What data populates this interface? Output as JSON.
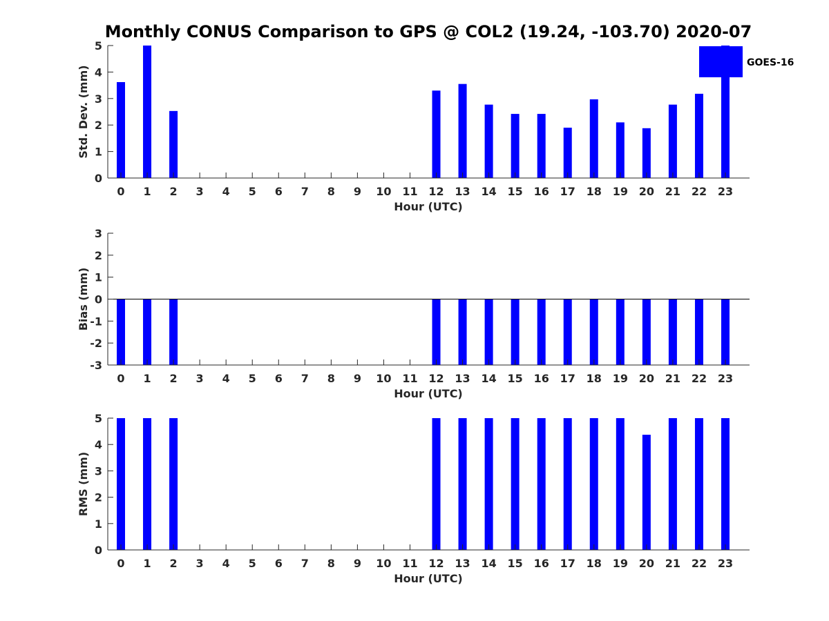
{
  "chart_data": {
    "type": "bar",
    "title": "Monthly CONUS Comparison to GPS @ COL2 (19.24, -103.70) 2020-07",
    "legend": {
      "entries": [
        "GOES-16"
      ],
      "placement": "top-right"
    },
    "colors": {
      "bar": "#0000ff",
      "axis": "#262626"
    },
    "categories": [
      "0",
      "1",
      "2",
      "3",
      "4",
      "5",
      "6",
      "7",
      "8",
      "9",
      "10",
      "11",
      "12",
      "13",
      "14",
      "15",
      "16",
      "17",
      "18",
      "19",
      "20",
      "21",
      "22",
      "23"
    ],
    "panels": [
      {
        "xlabel": "Hour (UTC)",
        "ylabel": "Std. Dev. (mm)",
        "ylim": [
          0,
          5
        ],
        "yticks": [
          "0",
          "1",
          "2",
          "3",
          "4",
          "5"
        ],
        "series": [
          {
            "name": "GOES-16",
            "values": [
              3.62,
              5.0,
              2.53,
              null,
              null,
              null,
              null,
              null,
              null,
              null,
              null,
              null,
              3.3,
              3.55,
              2.77,
              2.42,
              2.42,
              1.9,
              2.97,
              2.1,
              1.88,
              2.77,
              3.18,
              5.0
            ]
          }
        ]
      },
      {
        "xlabel": "Hour (UTC)",
        "ylabel": "Bias (mm)",
        "ylim": [
          -3,
          3
        ],
        "yticks": [
          "-3",
          "-2",
          "-1",
          "0",
          "1",
          "2",
          "3"
        ],
        "series": [
          {
            "name": "GOES-16",
            "values": [
              -3.0,
              -3.0,
              -3.0,
              null,
              null,
              null,
              null,
              null,
              null,
              null,
              null,
              null,
              -3.0,
              -3.0,
              -3.0,
              -3.0,
              -3.0,
              -3.0,
              -3.0,
              -3.0,
              -3.0,
              -3.0,
              -3.0,
              -3.0
            ]
          }
        ]
      },
      {
        "xlabel": "Hour (UTC)",
        "ylabel": "RMS (mm)",
        "ylim": [
          0,
          5
        ],
        "yticks": [
          "0",
          "1",
          "2",
          "3",
          "4",
          "5"
        ],
        "series": [
          {
            "name": "GOES-16",
            "values": [
              5.0,
              5.0,
              5.0,
              null,
              null,
              null,
              null,
              null,
              null,
              null,
              null,
              null,
              5.0,
              5.0,
              5.0,
              5.0,
              5.0,
              5.0,
              5.0,
              5.0,
              4.37,
              5.0,
              5.0,
              5.0
            ]
          }
        ]
      }
    ]
  }
}
